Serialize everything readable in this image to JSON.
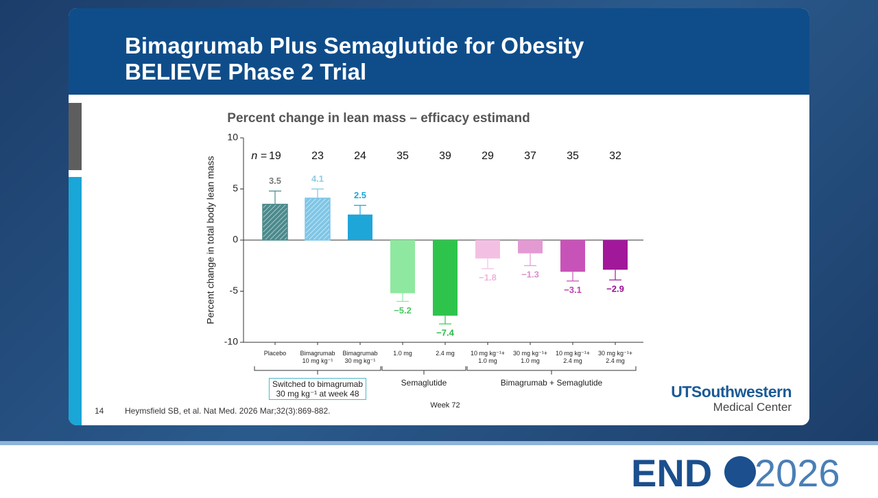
{
  "slide": {
    "title_lines": [
      "Bimagrumab Plus Semaglutide for Obesity",
      "BELIEVE Phase 2 Trial"
    ],
    "page_number": "14",
    "citation": "Heymsfield SB, et al. Nat Med. 2026 Mar;32(3):869-882.",
    "logo_line1": "UTSouthwestern",
    "logo_line2": "Medical Center",
    "conference_left": "END",
    "conference_right": "2026"
  },
  "chart_data": {
    "type": "bar",
    "title": "Percent change in lean mass – efficacy estimand",
    "ylabel": "Percent change in total body lean mass",
    "xlabel": "Week 72",
    "categories": [
      "Placebo",
      "Bimagrumab\n10 mg kg⁻¹",
      "Bimagrumab\n30 mg kg⁻¹",
      "1.0 mg",
      "2.4 mg",
      "10 mg kg⁻¹+\n1.0 mg",
      "30 mg kg⁻¹+\n1.0 mg",
      "10 mg kg⁻¹+\n2.4 mg",
      "30 mg kg⁻¹+\n2.4 mg"
    ],
    "n_label": "n =",
    "n": [
      19,
      23,
      24,
      35,
      39,
      29,
      37,
      35,
      32
    ],
    "values": [
      3.5,
      4.1,
      2.5,
      -5.2,
      -7.4,
      -1.8,
      -1.3,
      -3.1,
      -2.9
    ],
    "value_labels": [
      "3.5",
      "4.1",
      "2.5",
      "−5.2",
      "−7.4",
      "−1.8",
      "−1.3",
      "−3.1",
      "−2.9"
    ],
    "errors": [
      1.3,
      0.9,
      0.9,
      0.8,
      0.8,
      1.0,
      1.2,
      0.9,
      1.0
    ],
    "colors": [
      "#4b8a8c",
      "#7fc6e6",
      "#1ea6d8",
      "#8ee8a0",
      "#2ec44c",
      "#f3c0e3",
      "#e39ad3",
      "#c853b8",
      "#a1189a"
    ],
    "label_colors": [
      "#7a7a7a",
      "#8fcbe6",
      "#1ea6d8",
      "#4cc864",
      "#2ebb4a",
      "#f0b4dc",
      "#dc8ccb",
      "#c040b0",
      "#9a1095"
    ],
    "hatched": [
      true,
      true,
      false,
      false,
      false,
      false,
      false,
      false,
      false
    ],
    "groups": [
      "Switched to bimagrumab\n30 mg kg⁻¹ at week 48",
      "Semaglutide",
      "Bimagrumab + Semaglutide"
    ],
    "ylim": [
      -10,
      10
    ],
    "yticks": [
      -10,
      -5,
      0,
      5,
      10
    ]
  }
}
